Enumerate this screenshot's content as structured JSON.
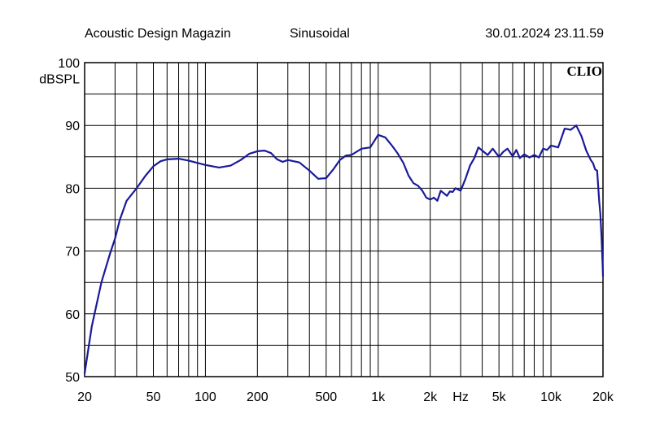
{
  "header": {
    "left": "Acoustic Design Magazin",
    "middle": "Sinusoidal",
    "right": "30.01.2024 23.11.59"
  },
  "brand": "CLIO",
  "chart_data": {
    "type": "line",
    "x_scale": "log",
    "xlim": [
      20,
      20000
    ],
    "ylim": [
      50,
      100
    ],
    "ylabel": "dBSPL",
    "xlabel": "Hz",
    "grid": true,
    "line_color": "#1a1a9a",
    "y_ticks": [
      "100",
      "90",
      "80",
      "70",
      "60",
      "50"
    ],
    "x_ticks": [
      {
        "label": "20",
        "value": 20
      },
      {
        "label": "50",
        "value": 50
      },
      {
        "label": "100",
        "value": 100
      },
      {
        "label": "200",
        "value": 200
      },
      {
        "label": "500",
        "value": 500
      },
      {
        "label": "1k",
        "value": 1000
      },
      {
        "label": "2k",
        "value": 2000
      },
      {
        "label": "5k",
        "value": 5000
      },
      {
        "label": "10k",
        "value": 10000
      },
      {
        "label": "20k",
        "value": 20000
      }
    ],
    "series": [
      {
        "x": [
          20,
          22,
          25,
          28,
          30,
          32,
          35,
          40,
          45,
          50,
          55,
          60,
          70,
          80,
          100,
          120,
          140,
          160,
          180,
          200,
          220,
          240,
          260,
          280,
          300,
          350,
          400,
          450,
          500,
          550,
          600,
          650,
          700,
          800,
          900,
          1000,
          1100,
          1200,
          1300,
          1400,
          1500,
          1600,
          1700,
          1800,
          1900,
          2000,
          2100,
          2200,
          2300,
          2400,
          2500,
          2600,
          2700,
          2800,
          3000,
          3200,
          3400,
          3600,
          3800,
          4000,
          4300,
          4600,
          5000,
          5300,
          5600,
          6000,
          6300,
          6600,
          7000,
          7500,
          8000,
          8500,
          9000,
          9500,
          10000,
          11000,
          12000,
          13000,
          14000,
          15000,
          16000,
          17000,
          17500,
          18000,
          18500,
          19000,
          19300,
          19600,
          19900,
          20000
        ],
        "y": [
          50.5,
          58,
          65,
          69.5,
          72,
          75,
          78,
          80,
          82,
          83.5,
          84.3,
          84.6,
          84.7,
          84.4,
          83.7,
          83.3,
          83.6,
          84.5,
          85.5,
          85.9,
          86,
          85.6,
          84.6,
          84.2,
          84.5,
          84.1,
          82.8,
          81.5,
          81.6,
          83,
          84.5,
          85.2,
          85.3,
          86.3,
          86.5,
          88.5,
          88.1,
          86.8,
          85.5,
          84,
          82,
          80.8,
          80.4,
          79.6,
          78.5,
          78.2,
          78.5,
          78,
          79.6,
          79.2,
          78.8,
          79.5,
          79.4,
          80,
          79.6,
          81.5,
          83.6,
          84.8,
          86.5,
          86,
          85.3,
          86.3,
          85,
          85.8,
          86.3,
          85.1,
          86.1,
          84.8,
          85.4,
          84.9,
          85.3,
          84.9,
          86.3,
          86.1,
          86.8,
          86.5,
          89.5,
          89.3,
          90,
          88.3,
          86,
          84.5,
          84,
          83,
          82.8,
          78,
          76,
          72.5,
          68,
          66
        ]
      }
    ]
  }
}
